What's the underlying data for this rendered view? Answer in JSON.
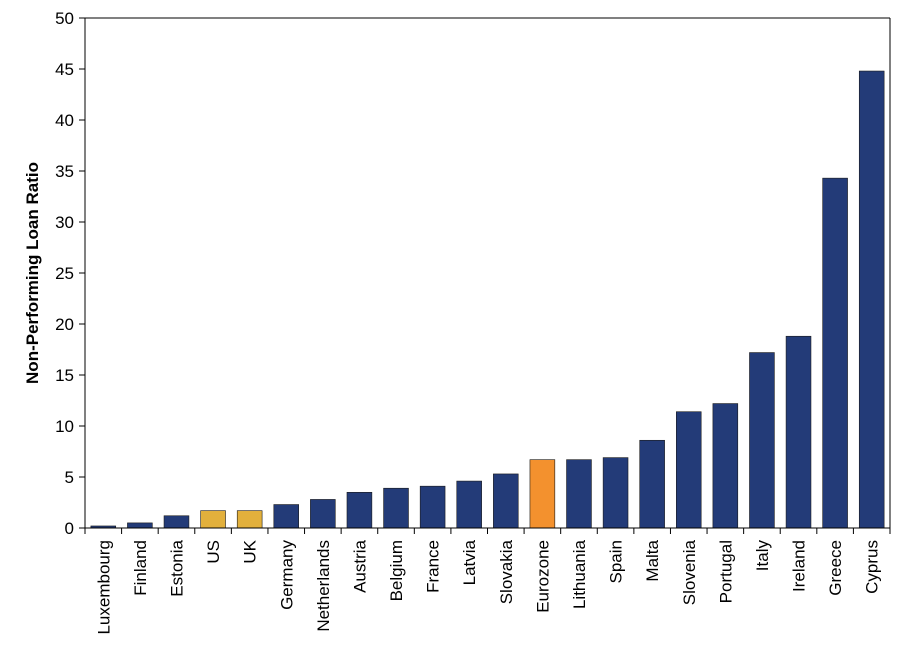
{
  "chart_data": {
    "type": "bar",
    "title": "",
    "xlabel": "",
    "ylabel": "Non-Performing Loan Ratio",
    "ylim": [
      0,
      50
    ],
    "yticks": [
      0,
      5,
      10,
      15,
      20,
      25,
      30,
      35,
      40,
      45,
      50
    ],
    "grid": false,
    "legend": "none",
    "categories": [
      "Luxembourg",
      "Finland",
      "Estonia",
      "US",
      "UK",
      "Germany",
      "Netherlands",
      "Austria",
      "Belgium",
      "France",
      "Latvia",
      "Slovakia",
      "Eurozone",
      "Lithuania",
      "Spain",
      "Malta",
      "Slovenia",
      "Portugal",
      "Italy",
      "Ireland",
      "Greece",
      "Cyprus"
    ],
    "values": [
      0.2,
      0.5,
      1.2,
      1.7,
      1.7,
      2.3,
      2.8,
      3.5,
      3.9,
      4.1,
      4.6,
      5.3,
      6.7,
      6.7,
      6.9,
      8.6,
      11.4,
      12.2,
      17.2,
      18.8,
      34.3,
      44.8
    ],
    "colors": {
      "default": "#233b78",
      "US": "#e2b03c",
      "UK": "#e2b03c",
      "Eurozone": "#f3912e"
    }
  }
}
